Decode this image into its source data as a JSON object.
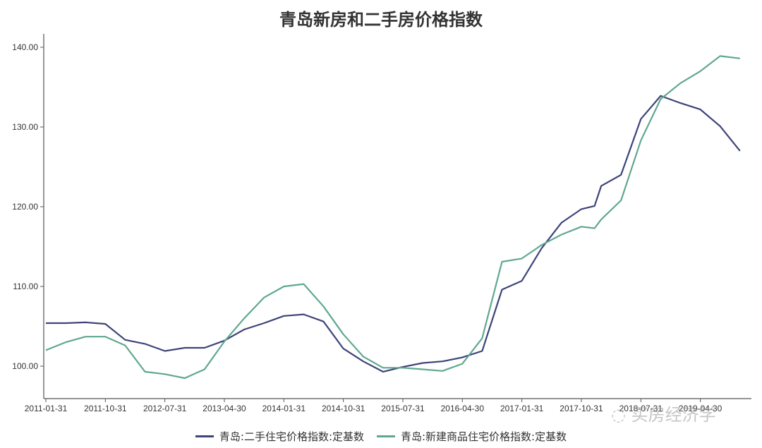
{
  "title": "青岛新房和二手房价格指数",
  "colors": {
    "second_hand": "#3d4478",
    "new_build": "#5fa890",
    "axis": "#555555",
    "text": "#333333"
  },
  "watermark": "◌ 买房经济学",
  "chart_data": {
    "type": "line",
    "title": "青岛新房和二手房价格指数",
    "xlabel": "",
    "ylabel": "",
    "ylim": [
      96,
      141.5
    ],
    "yticks": [
      "100.00",
      "110.00",
      "120.00",
      "130.00",
      "140.00"
    ],
    "xticks": [
      "2011-01-31",
      "2011-10-31",
      "2012-07-31",
      "2013-04-30",
      "2014-01-31",
      "2014-10-31",
      "2015-07-31",
      "2016-04-30",
      "2017-01-31",
      "2017-10-31",
      "2018-07-31",
      "2019-04-30"
    ],
    "grid": false,
    "legend_position": "bottom",
    "x": [
      "2011-01",
      "2011-04",
      "2011-07",
      "2011-10",
      "2012-01",
      "2012-04",
      "2012-07",
      "2012-10",
      "2013-01",
      "2013-04",
      "2013-07",
      "2013-10",
      "2014-01",
      "2014-04",
      "2014-07",
      "2014-10",
      "2015-01",
      "2015-04",
      "2015-07",
      "2015-10",
      "2016-01",
      "2016-04",
      "2016-07",
      "2016-10",
      "2017-01",
      "2017-04",
      "2017-07",
      "2017-10",
      "2017-12",
      "2018-01",
      "2018-04",
      "2018-07",
      "2018-10",
      "2019-01",
      "2019-04",
      "2019-07",
      "2019-10"
    ],
    "series": [
      {
        "name": "青岛:二手住宅价格指数:定基数",
        "values": [
          105.4,
          105.4,
          105.5,
          105.3,
          103.3,
          102.8,
          101.9,
          102.3,
          102.3,
          103.2,
          104.6,
          105.4,
          106.3,
          106.5,
          105.6,
          102.2,
          100.6,
          99.3,
          99.9,
          100.4,
          100.6,
          101.1,
          101.9,
          109.6,
          110.7,
          114.8,
          118.0,
          119.7,
          120.1,
          122.6,
          124.0,
          131.0,
          133.9,
          133.0,
          132.2,
          130.1,
          127.0
        ]
      },
      {
        "name": "青岛:新建商品住宅价格指数:定基数",
        "values": [
          102.0,
          103.0,
          103.7,
          103.7,
          102.6,
          99.3,
          99.0,
          98.5,
          99.6,
          103.1,
          106.0,
          108.6,
          110.0,
          110.3,
          107.5,
          104.0,
          101.2,
          99.8,
          99.8,
          99.6,
          99.4,
          100.3,
          103.5,
          113.1,
          113.5,
          115.2,
          116.5,
          117.5,
          117.3,
          118.4,
          120.8,
          128.3,
          133.5,
          135.5,
          137.0,
          138.9,
          138.6
        ]
      }
    ]
  },
  "legend": {
    "items": [
      {
        "label": "青岛:二手住宅价格指数:定基数",
        "color": "#3d4478"
      },
      {
        "label": "青岛:新建商品住宅价格指数:定基数",
        "color": "#5fa890"
      }
    ]
  }
}
